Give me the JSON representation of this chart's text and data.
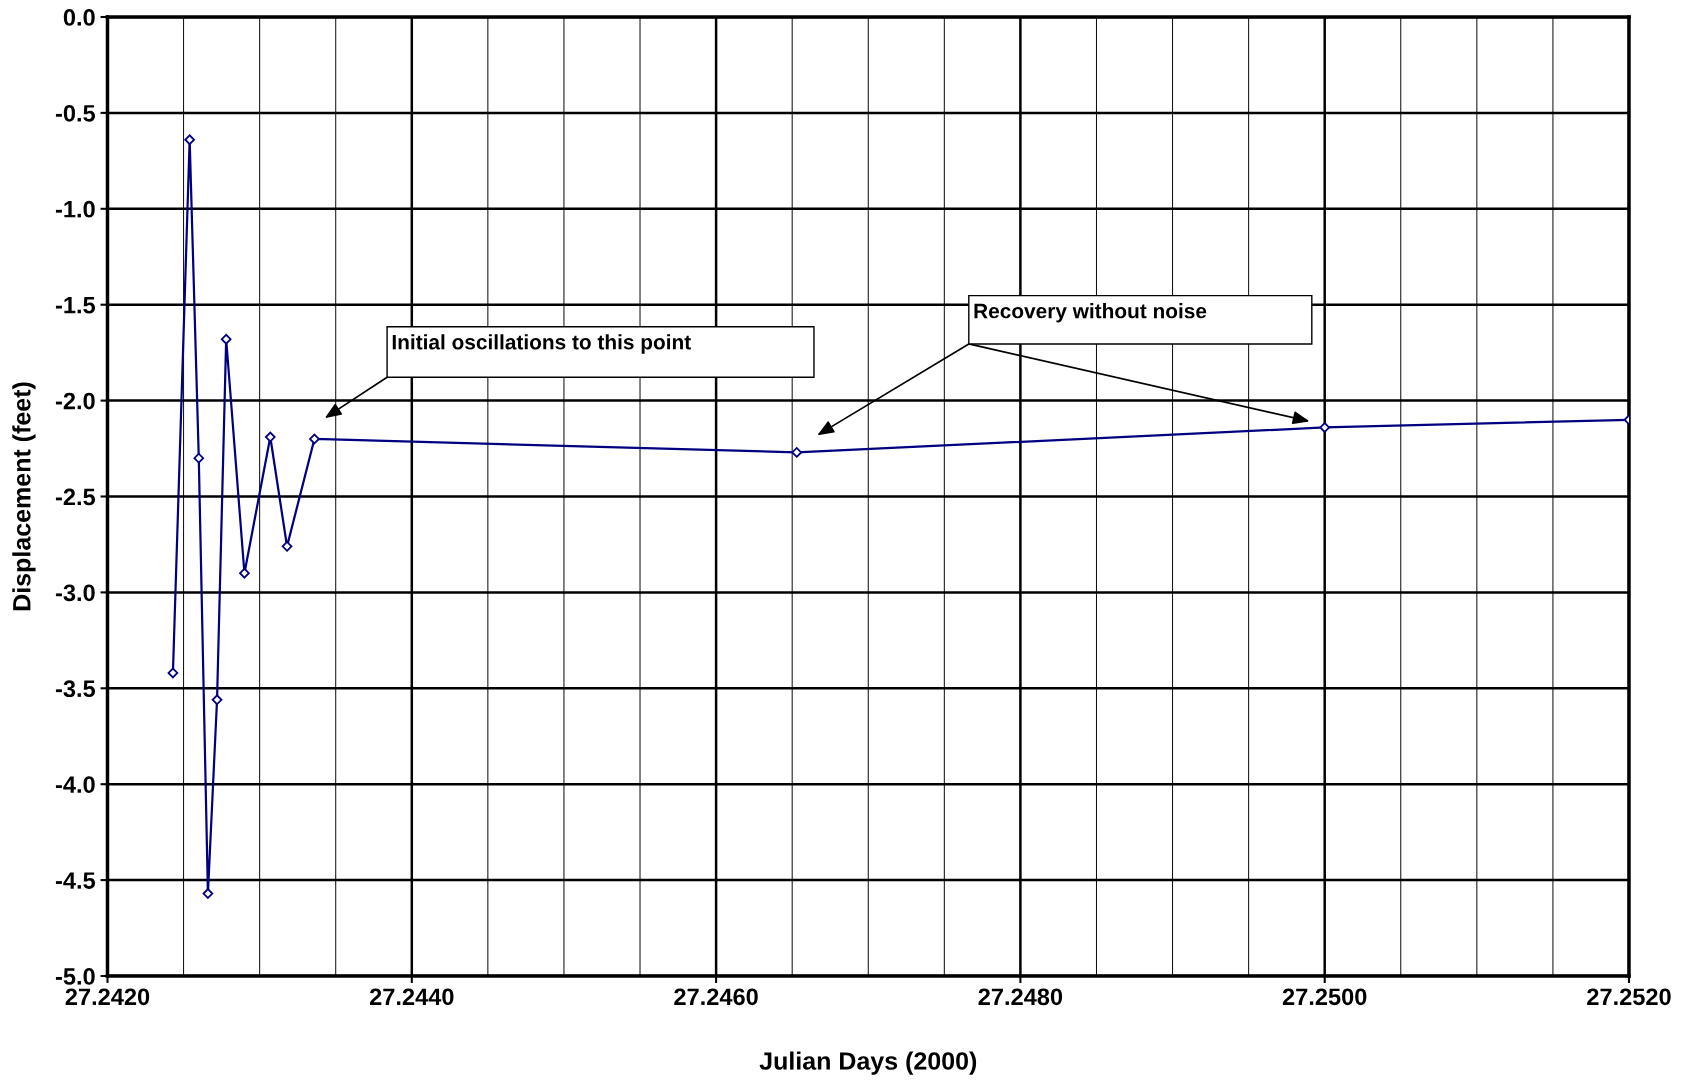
{
  "chart_data": {
    "type": "line",
    "xlabel": "Julian Days (2000)",
    "ylabel": "Displacement (feet)",
    "x": [
      27.24243,
      27.24254,
      27.2426,
      27.24266,
      27.24272,
      27.24278,
      27.2429,
      27.24307,
      27.24318,
      27.24336,
      27.24653,
      27.25,
      27.252
    ],
    "series": [
      {
        "color": "#000080",
        "values": [
          -3.42,
          -0.64,
          -2.3,
          -4.57,
          -3.56,
          -1.68,
          -2.9,
          -2.19,
          -2.76,
          -2.2,
          -2.27,
          -2.14,
          -2.1
        ]
      }
    ],
    "marker": "diamond",
    "grid": true,
    "xlim": [
      27.242,
      27.252
    ],
    "xticks": [
      {
        "value": 27.242,
        "label": "27.2420"
      },
      {
        "value": 27.244,
        "label": "27.2440"
      },
      {
        "value": 27.246,
        "label": "27.2460"
      },
      {
        "value": 27.248,
        "label": "27.2480"
      },
      {
        "value": 27.25,
        "label": "27.2500"
      },
      {
        "value": 27.252,
        "label": "27.2520"
      }
    ],
    "ylim": [
      -5.0,
      0.0
    ],
    "yticks": [
      {
        "value": -5,
        "label": "-5.0"
      },
      {
        "value": -4.5,
        "label": "-4.5"
      },
      {
        "value": -4,
        "label": "-4.0"
      },
      {
        "value": -3.5,
        "label": "-3.5"
      },
      {
        "value": -3,
        "label": "-3.0"
      },
      {
        "value": -2.5,
        "label": "-2.5"
      },
      {
        "value": -2,
        "label": "-2.0"
      },
      {
        "value": -1.5,
        "label": "-1.5"
      },
      {
        "value": -1,
        "label": "-1.0"
      },
      {
        "value": -0.5,
        "label": "-0.5"
      },
      {
        "value": 0,
        "label": "0.0"
      }
    ],
    "annotations": [
      "Initial oscillations to this point",
      "Recovery without noise"
    ]
  }
}
